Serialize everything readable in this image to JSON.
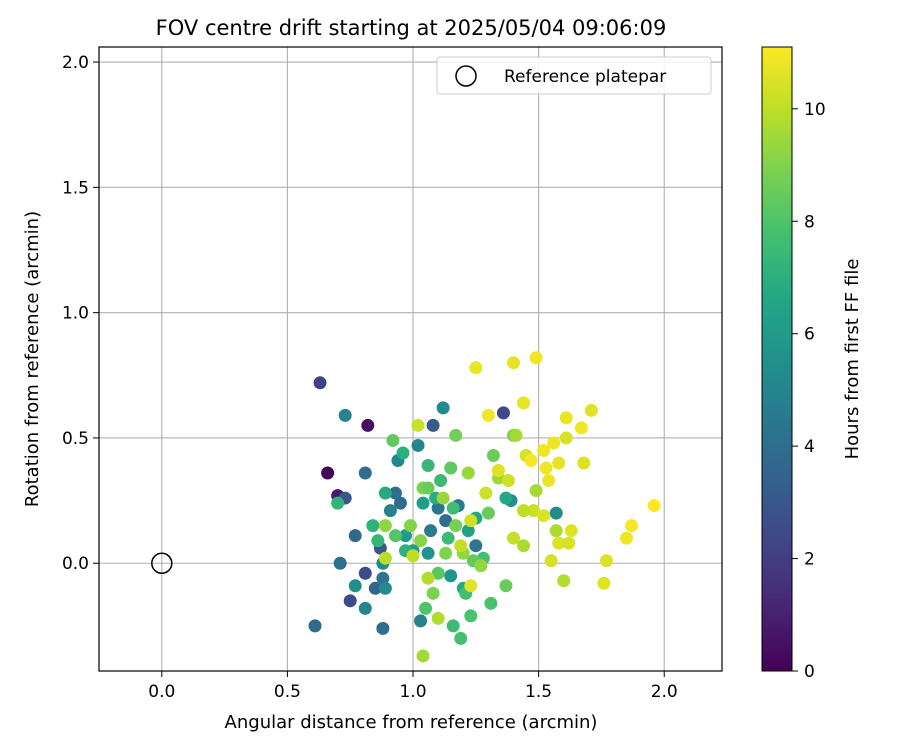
{
  "chart_data": {
    "type": "scatter",
    "title": "FOV centre drift starting at 2025/05/04 09:06:09",
    "xlabel": "Angular distance from reference (arcmin)",
    "ylabel": "Rotation from reference (arcmin)",
    "xlim": [
      -0.25,
      2.23
    ],
    "ylim": [
      -0.43,
      2.06
    ],
    "xticks": [
      0.0,
      0.5,
      1.0,
      1.5,
      2.0
    ],
    "xtick_labels": [
      "0.0",
      "0.5",
      "1.0",
      "1.5",
      "2.0"
    ],
    "yticks": [
      0.0,
      0.5,
      1.0,
      1.5,
      2.0
    ],
    "ytick_labels": [
      "0.0",
      "0.5",
      "1.0",
      "1.5",
      "2.0"
    ],
    "grid": true,
    "legend": {
      "position": "top-right",
      "label": "Reference platepar"
    },
    "reference_point": {
      "x": 0.0,
      "y": 0.0
    },
    "colorbar": {
      "label": "Hours from first FF file",
      "colormap": "viridis",
      "range": [
        0,
        11.1
      ],
      "ticks": [
        0,
        2,
        4,
        6,
        8,
        10
      ],
      "tick_labels": [
        "0",
        "2",
        "4",
        "6",
        "8",
        "10"
      ]
    },
    "points": [
      {
        "x": 0.66,
        "y": 0.36,
        "c": 0.1
      },
      {
        "x": 0.82,
        "y": 0.55,
        "c": 0.4
      },
      {
        "x": 0.7,
        "y": 0.27,
        "c": 0.8
      },
      {
        "x": 0.63,
        "y": 0.72,
        "c": 2.2
      },
      {
        "x": 1.36,
        "y": 0.6,
        "c": 2.4
      },
      {
        "x": 0.75,
        "y": -0.15,
        "c": 2.6
      },
      {
        "x": 0.81,
        "y": -0.04,
        "c": 2.5
      },
      {
        "x": 0.73,
        "y": 0.26,
        "c": 3.0
      },
      {
        "x": 1.08,
        "y": 0.55,
        "c": 3.2
      },
      {
        "x": 0.87,
        "y": 0.06,
        "c": 3.0
      },
      {
        "x": 0.85,
        "y": -0.1,
        "c": 3.6
      },
      {
        "x": 0.61,
        "y": -0.25,
        "c": 3.8
      },
      {
        "x": 0.77,
        "y": 0.11,
        "c": 3.7
      },
      {
        "x": 0.81,
        "y": 0.36,
        "c": 3.9
      },
      {
        "x": 0.88,
        "y": -0.26,
        "c": 4.0
      },
      {
        "x": 0.71,
        "y": -0.0,
        "c": 4.1
      },
      {
        "x": 0.93,
        "y": 0.28,
        "c": 4.0
      },
      {
        "x": 0.95,
        "y": 0.24,
        "c": 3.9
      },
      {
        "x": 0.88,
        "y": -0.06,
        "c": 4.2
      },
      {
        "x": 1.1,
        "y": 0.22,
        "c": 4.3
      },
      {
        "x": 1.13,
        "y": 0.17,
        "c": 4.0
      },
      {
        "x": 1.18,
        "y": 0.23,
        "c": 4.5
      },
      {
        "x": 1.07,
        "y": 0.13,
        "c": 4.6
      },
      {
        "x": 1.25,
        "y": 0.07,
        "c": 4.4
      },
      {
        "x": 1.03,
        "y": -0.23,
        "c": 4.8
      },
      {
        "x": 0.73,
        "y": 0.59,
        "c": 5.0
      },
      {
        "x": 0.91,
        "y": 0.21,
        "c": 4.9
      },
      {
        "x": 1.02,
        "y": 0.47,
        "c": 5.0
      },
      {
        "x": 0.94,
        "y": 0.41,
        "c": 5.1
      },
      {
        "x": 0.89,
        "y": -0.1,
        "c": 5.2
      },
      {
        "x": 0.81,
        "y": -0.18,
        "c": 5.0
      },
      {
        "x": 0.77,
        "y": -0.09,
        "c": 5.4
      },
      {
        "x": 0.88,
        "y": 0.0,
        "c": 5.3
      },
      {
        "x": 1.12,
        "y": 0.62,
        "c": 5.3
      },
      {
        "x": 1.39,
        "y": 0.25,
        "c": 5.5
      },
      {
        "x": 1.57,
        "y": 0.2,
        "c": 5.4
      },
      {
        "x": 1.06,
        "y": 0.04,
        "c": 5.6
      },
      {
        "x": 1.15,
        "y": -0.05,
        "c": 5.8
      },
      {
        "x": 0.97,
        "y": 0.11,
        "c": 6.0
      },
      {
        "x": 1.0,
        "y": 0.05,
        "c": 6.1
      },
      {
        "x": 1.04,
        "y": 0.24,
        "c": 6.2
      },
      {
        "x": 1.22,
        "y": 0.13,
        "c": 6.3
      },
      {
        "x": 1.25,
        "y": 0.18,
        "c": 6.6
      },
      {
        "x": 1.37,
        "y": 0.26,
        "c": 6.7
      },
      {
        "x": 1.2,
        "y": -0.1,
        "c": 6.8
      },
      {
        "x": 0.89,
        "y": 0.28,
        "c": 6.8
      },
      {
        "x": 1.09,
        "y": 0.26,
        "c": 6.9
      },
      {
        "x": 0.96,
        "y": 0.44,
        "c": 7.0
      },
      {
        "x": 0.7,
        "y": 0.24,
        "c": 7.2
      },
      {
        "x": 0.84,
        "y": 0.15,
        "c": 7.1
      },
      {
        "x": 0.86,
        "y": 0.09,
        "c": 7.3
      },
      {
        "x": 0.97,
        "y": 0.05,
        "c": 7.1
      },
      {
        "x": 1.06,
        "y": 0.39,
        "c": 7.4
      },
      {
        "x": 1.11,
        "y": 0.33,
        "c": 7.5
      },
      {
        "x": 1.14,
        "y": 0.1,
        "c": 7.5
      },
      {
        "x": 1.16,
        "y": 0.22,
        "c": 7.6
      },
      {
        "x": 1.21,
        "y": -0.12,
        "c": 7.7
      },
      {
        "x": 1.16,
        "y": -0.25,
        "c": 7.6
      },
      {
        "x": 1.19,
        "y": -0.3,
        "c": 7.8
      },
      {
        "x": 1.23,
        "y": -0.21,
        "c": 7.9
      },
      {
        "x": 1.28,
        "y": 0.02,
        "c": 7.8
      },
      {
        "x": 1.31,
        "y": -0.16,
        "c": 7.9
      },
      {
        "x": 1.05,
        "y": -0.18,
        "c": 8.0
      },
      {
        "x": 0.93,
        "y": 0.11,
        "c": 8.1
      },
      {
        "x": 0.92,
        "y": 0.49,
        "c": 8.4
      },
      {
        "x": 1.1,
        "y": -0.04,
        "c": 8.2
      },
      {
        "x": 1.15,
        "y": 0.38,
        "c": 8.3
      },
      {
        "x": 1.17,
        "y": 0.51,
        "c": 8.7
      },
      {
        "x": 1.24,
        "y": 0.01,
        "c": 8.4
      },
      {
        "x": 1.3,
        "y": 0.2,
        "c": 8.5
      },
      {
        "x": 1.32,
        "y": 0.43,
        "c": 8.6
      },
      {
        "x": 1.4,
        "y": 0.51,
        "c": 8.8
      },
      {
        "x": 1.37,
        "y": -0.09,
        "c": 8.5
      },
      {
        "x": 1.17,
        "y": 0.15,
        "c": 8.8
      },
      {
        "x": 1.04,
        "y": 0.3,
        "c": 8.9
      },
      {
        "x": 1.13,
        "y": 0.04,
        "c": 9.0
      },
      {
        "x": 1.08,
        "y": -0.12,
        "c": 8.9
      },
      {
        "x": 0.99,
        "y": 0.15,
        "c": 9.0
      },
      {
        "x": 0.89,
        "y": 0.15,
        "c": 9.2
      },
      {
        "x": 1.03,
        "y": 0.09,
        "c": 9.1
      },
      {
        "x": 1.2,
        "y": 0.04,
        "c": 9.3
      },
      {
        "x": 1.27,
        "y": -0.01,
        "c": 9.3
      },
      {
        "x": 1.12,
        "y": 0.26,
        "c": 9.4
      },
      {
        "x": 1.22,
        "y": 0.36,
        "c": 9.4
      },
      {
        "x": 1.34,
        "y": 0.34,
        "c": 9.5
      },
      {
        "x": 1.41,
        "y": 0.51,
        "c": 9.6
      },
      {
        "x": 1.44,
        "y": 0.07,
        "c": 9.7
      },
      {
        "x": 1.49,
        "y": 0.29,
        "c": 9.6
      },
      {
        "x": 1.57,
        "y": 0.13,
        "c": 9.7
      },
      {
        "x": 1.6,
        "y": -0.07,
        "c": 9.8
      },
      {
        "x": 1.1,
        "y": -0.22,
        "c": 9.8
      },
      {
        "x": 1.06,
        "y": -0.06,
        "c": 9.8
      },
      {
        "x": 1.04,
        "y": -0.37,
        "c": 9.6
      },
      {
        "x": 0.89,
        "y": 0.02,
        "c": 9.9
      },
      {
        "x": 1.0,
        "y": 0.03,
        "c": 10.0
      },
      {
        "x": 1.02,
        "y": 0.55,
        "c": 10.2
      },
      {
        "x": 1.19,
        "y": 0.07,
        "c": 10.1
      },
      {
        "x": 1.23,
        "y": 0.17,
        "c": 10.3
      },
      {
        "x": 1.29,
        "y": 0.28,
        "c": 10.2
      },
      {
        "x": 1.38,
        "y": 0.33,
        "c": 10.3
      },
      {
        "x": 1.45,
        "y": 0.43,
        "c": 10.4
      },
      {
        "x": 1.48,
        "y": 0.21,
        "c": 10.2
      },
      {
        "x": 1.52,
        "y": 0.19,
        "c": 10.5
      },
      {
        "x": 1.55,
        "y": 0.01,
        "c": 10.4
      },
      {
        "x": 1.58,
        "y": 0.08,
        "c": 10.5
      },
      {
        "x": 1.61,
        "y": 0.5,
        "c": 10.4
      },
      {
        "x": 1.68,
        "y": 0.4,
        "c": 10.5
      },
      {
        "x": 1.71,
        "y": 0.61,
        "c": 10.6
      },
      {
        "x": 1.77,
        "y": 0.01,
        "c": 10.5
      },
      {
        "x": 1.76,
        "y": -0.08,
        "c": 10.6
      },
      {
        "x": 1.4,
        "y": 0.8,
        "c": 10.7
      },
      {
        "x": 1.25,
        "y": 0.78,
        "c": 10.8
      },
      {
        "x": 1.49,
        "y": 0.82,
        "c": 10.9
      },
      {
        "x": 1.44,
        "y": 0.64,
        "c": 10.7
      },
      {
        "x": 1.61,
        "y": 0.58,
        "c": 10.8
      },
      {
        "x": 1.67,
        "y": 0.54,
        "c": 10.9
      },
      {
        "x": 1.56,
        "y": 0.48,
        "c": 10.8
      },
      {
        "x": 1.52,
        "y": 0.45,
        "c": 10.9
      },
      {
        "x": 1.47,
        "y": 0.41,
        "c": 11.0
      },
      {
        "x": 1.53,
        "y": 0.38,
        "c": 10.9
      },
      {
        "x": 1.58,
        "y": 0.4,
        "c": 10.7
      },
      {
        "x": 1.54,
        "y": 0.33,
        "c": 10.8
      },
      {
        "x": 1.3,
        "y": 0.59,
        "c": 10.9
      },
      {
        "x": 1.34,
        "y": 0.37,
        "c": 10.6
      },
      {
        "x": 1.62,
        "y": 0.08,
        "c": 10.4
      },
      {
        "x": 1.63,
        "y": 0.13,
        "c": 10.6
      },
      {
        "x": 1.85,
        "y": 0.1,
        "c": 10.9
      },
      {
        "x": 1.87,
        "y": 0.15,
        "c": 11.0
      },
      {
        "x": 1.96,
        "y": 0.23,
        "c": 11.1
      },
      {
        "x": 1.44,
        "y": 0.21,
        "c": 10.0
      },
      {
        "x": 1.4,
        "y": 0.1,
        "c": 10.1
      },
      {
        "x": 1.23,
        "y": -0.09,
        "c": 10.6
      },
      {
        "x": 1.06,
        "y": 0.3,
        "c": 8.5
      }
    ]
  }
}
